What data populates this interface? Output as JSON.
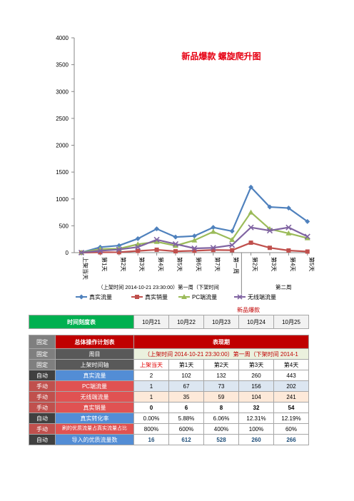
{
  "chart_data": {
    "type": "line",
    "title": "新品爆款 螺旋爬升图",
    "categories": [
      "上架当天",
      "第1天",
      "第2天",
      "第3天",
      "第4天",
      "第5天",
      "第6天",
      "第7天",
      "第一周",
      "第2天",
      "第3天",
      "第4天",
      "第5天"
    ],
    "xgroups": [
      {
        "label": "（上架时间 2014-10-21 23:30:00）第一周（下架时间",
        "text_bold": "2014-10-21 23:30:00"
      },
      {
        "label": "第二周"
      }
    ],
    "ylim": [
      0,
      4000
    ],
    "yticks": [
      0,
      500,
      1000,
      1500,
      2000,
      2500,
      3000,
      3500,
      4000
    ],
    "series": [
      {
        "name": "真实流量",
        "color": "#4f81bd",
        "marker": "diamond",
        "values": [
          2,
          102,
          132,
          260,
          443,
          290,
          310,
          470,
          400,
          1220,
          850,
          830,
          580
        ]
      },
      {
        "name": "真实销量",
        "color": "#c0504d",
        "marker": "square",
        "values": [
          0,
          6,
          8,
          32,
          54,
          25,
          35,
          50,
          45,
          185,
          90,
          40,
          20
        ]
      },
      {
        "name": "PC端流量",
        "color": "#9bbb59",
        "marker": "triangle",
        "values": [
          1,
          67,
          73,
          156,
          202,
          130,
          230,
          390,
          240,
          750,
          440,
          360,
          270
        ]
      },
      {
        "name": "无线端流量",
        "color": "#8064a2",
        "marker": "x",
        "values": [
          1,
          35,
          59,
          104,
          241,
          160,
          80,
          90,
          140,
          470,
          410,
          470,
          300
        ]
      }
    ],
    "grid": false,
    "legend": "bottom"
  },
  "table_top": {
    "title": "时间刻度表",
    "dates": [
      "10月21",
      "10月22",
      "10月23",
      "10月24",
      "10月25"
    ],
    "overlay_text": "新品爆款"
  },
  "table_main": {
    "plan_title": "总体操作计划表",
    "perf_title": "表现期",
    "rows": [
      {
        "tag": "固定",
        "label": "周目",
        "period": "（上架时间 2014-10-21 23:30:00）第一周（下架时间 2014-1"
      },
      {
        "tag": "固定",
        "label": "上架时间轴",
        "values": [
          "上架当天",
          "第1天",
          "第2天",
          "第3天",
          "第4天"
        ]
      },
      {
        "tag": "自动",
        "label": "真实流量",
        "values": [
          "2",
          "102",
          "132",
          "260",
          "443"
        ]
      },
      {
        "tag": "手动",
        "label": "PC端流量",
        "values": [
          "1",
          "67",
          "73",
          "156",
          "202"
        ]
      },
      {
        "tag": "手动",
        "label": "无线端流量",
        "values": [
          "1",
          "35",
          "59",
          "104",
          "241"
        ]
      },
      {
        "tag": "手动",
        "label": "真实销量",
        "values": [
          "0",
          "6",
          "8",
          "32",
          "54"
        ]
      },
      {
        "tag": "自动",
        "label": "真实转化率",
        "values": [
          "0.00%",
          "5.88%",
          "6.06%",
          "12.31%",
          "12.19%"
        ]
      },
      {
        "tag": "手动",
        "label": "刷的优质流量占真实流量占比",
        "values": [
          "800%",
          "600%",
          "400%",
          "100%",
          "60%"
        ]
      },
      {
        "tag": "自动",
        "label": "导入的优质流量数",
        "values": [
          "16",
          "612",
          "528",
          "260",
          "266"
        ]
      }
    ]
  }
}
